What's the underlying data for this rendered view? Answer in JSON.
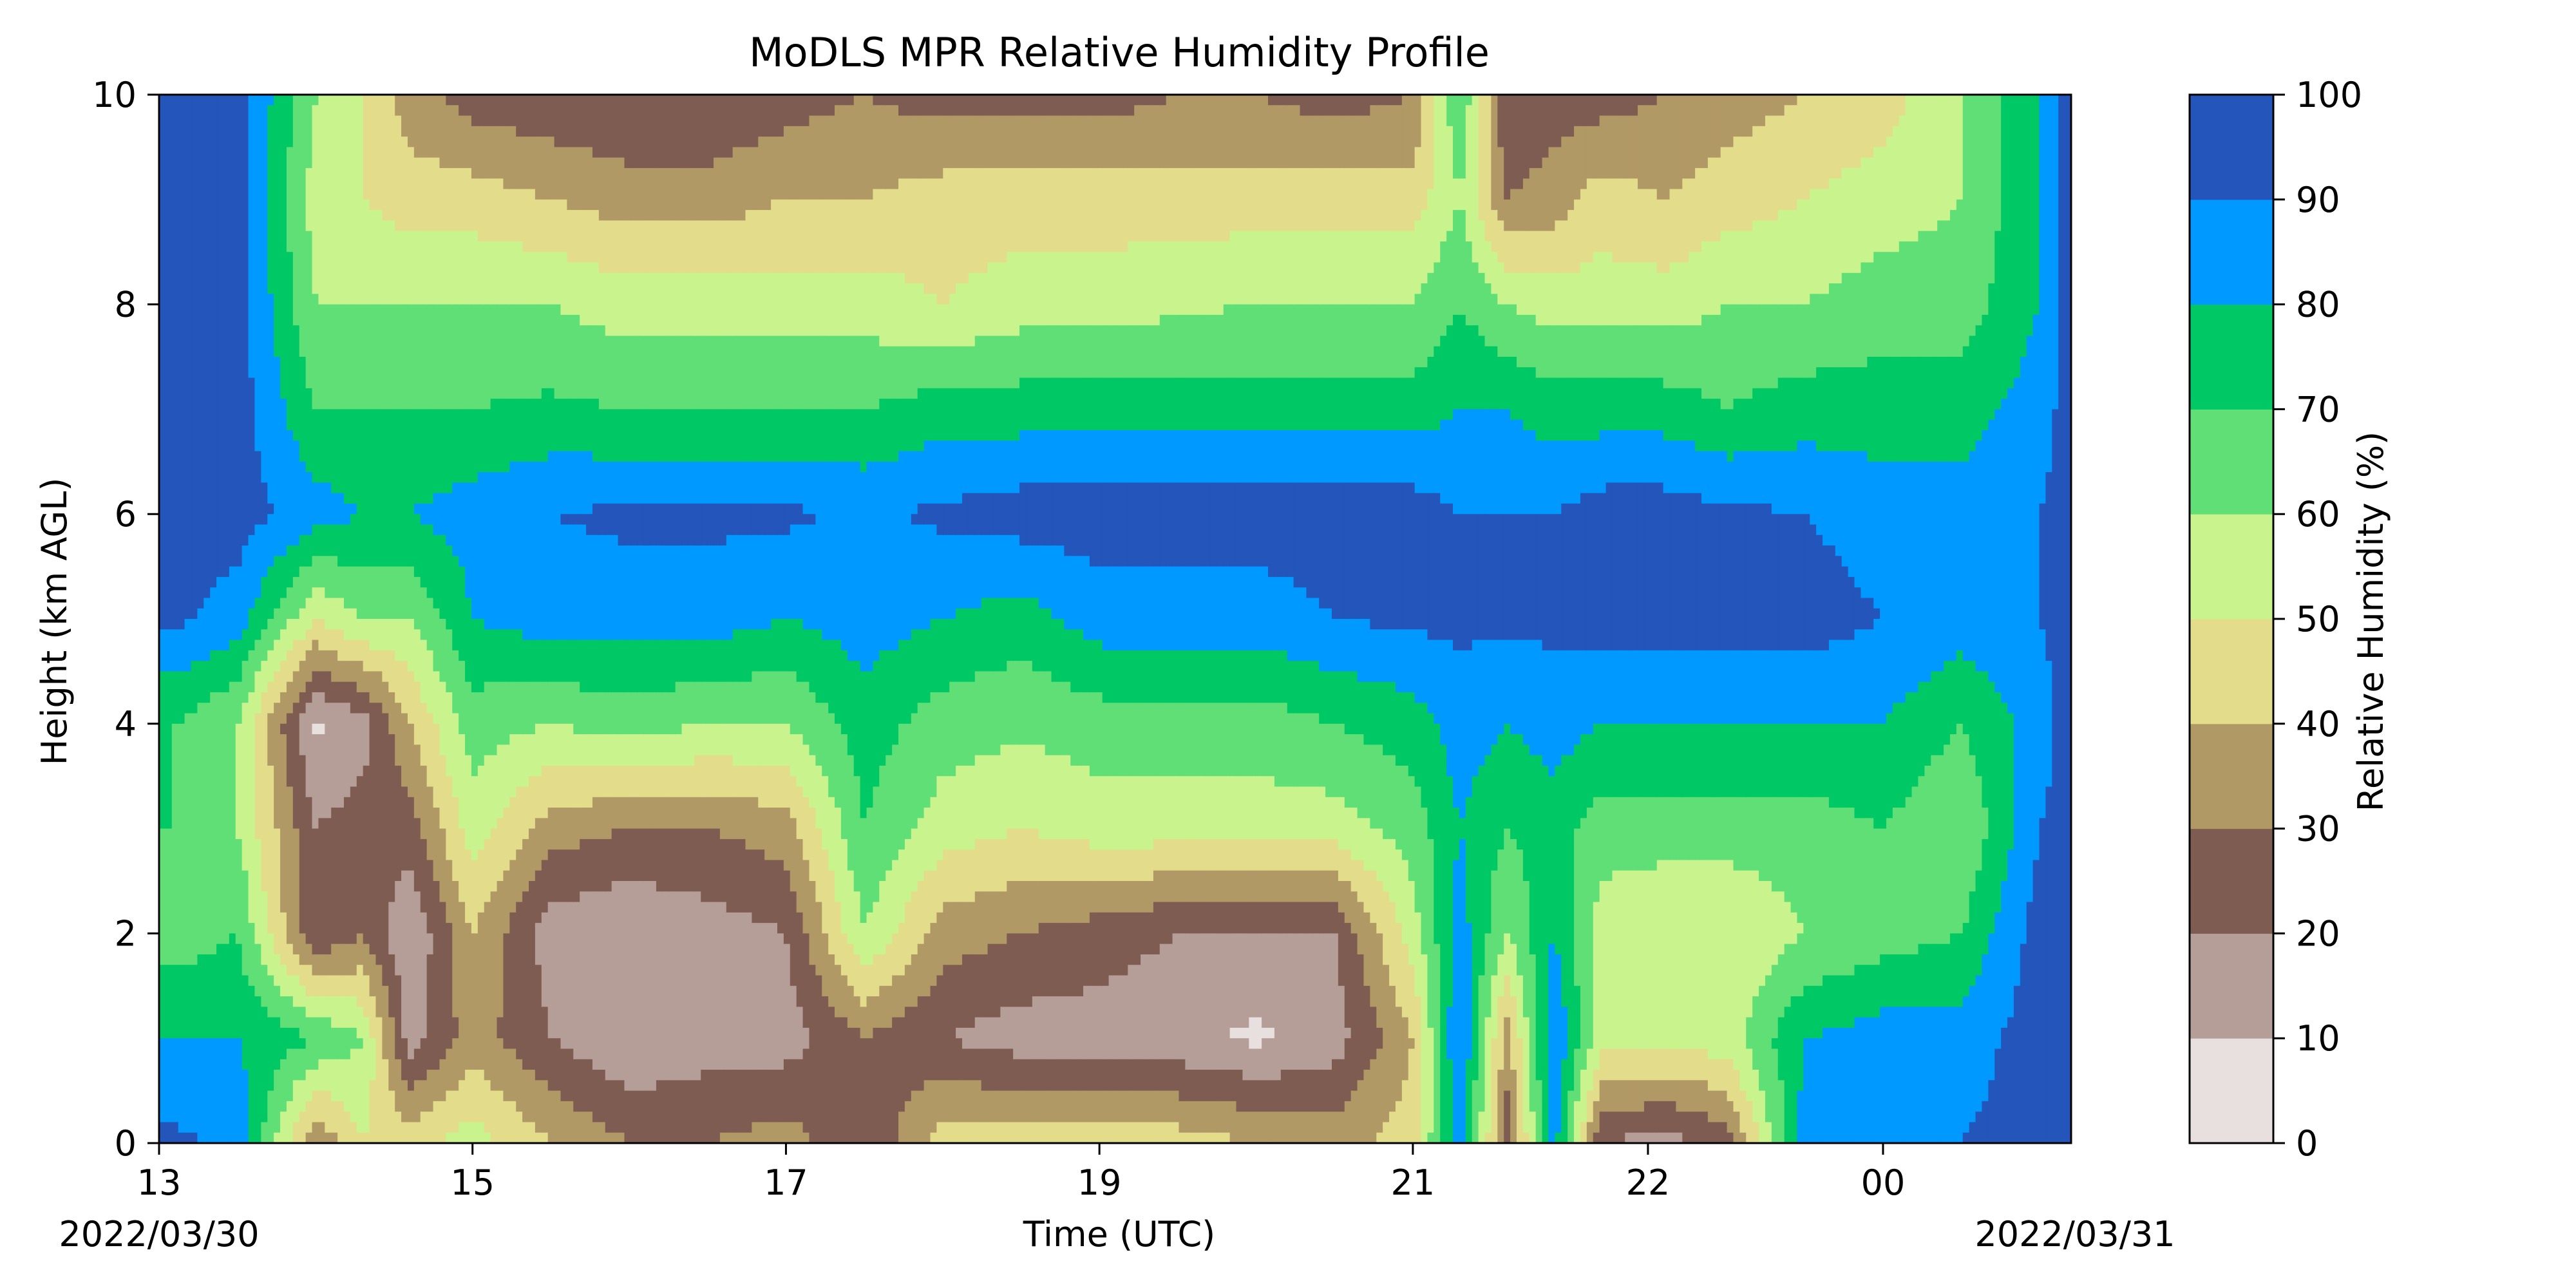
{
  "chart_data": {
    "type": "heatmap",
    "title": "MoDLS MPR Relative Humidity Profile",
    "xlabel": "Time (UTC)",
    "ylabel": "Height (km AGL)",
    "ylim": [
      0,
      10
    ],
    "y_ticks": [
      0,
      2,
      4,
      6,
      8,
      10
    ],
    "x_ticks": [
      "13",
      "15",
      "17",
      "19",
      "21",
      "22",
      "00"
    ],
    "x_tick_hours": [
      13,
      15,
      17,
      19,
      21,
      22.5,
      24
    ],
    "xlim_hours": [
      13,
      25.2
    ],
    "date_start_label": "2022/03/30",
    "date_end_label": "2022/03/31",
    "colorbar": {
      "label": "Relative Humidity (%)",
      "ticks": [
        0,
        10,
        20,
        30,
        40,
        50,
        60,
        70,
        80,
        90,
        100
      ],
      "levels": [
        0,
        10,
        20,
        30,
        40,
        50,
        60,
        70,
        80,
        90,
        100
      ],
      "colors": [
        "#e8e0de",
        "#b59e97",
        "#7f5c52",
        "#b19966",
        "#e3dd8b",
        "#c9f48d",
        "#5fdf76",
        "#00c864",
        "#0099ff",
        "#2455bb"
      ]
    },
    "grid": false,
    "profiles": [
      {
        "t": 13.1,
        "rh": [
          92,
          80,
          65,
          70,
          70,
          92,
          95,
          95,
          95,
          95,
          95
        ]
      },
      {
        "t": 13.5,
        "rh": [
          88,
          80,
          70,
          60,
          60,
          85,
          95,
          95,
          95,
          95,
          95
        ]
      },
      {
        "t": 14.0,
        "rh": [
          30,
          70,
          20,
          20,
          8,
          50,
          85,
          70,
          60,
          55,
          60
        ]
      },
      {
        "t": 14.3,
        "rh": [
          50,
          60,
          30,
          25,
          15,
          60,
          80,
          70,
          60,
          50,
          50
        ]
      },
      {
        "t": 14.6,
        "rh": [
          45,
          15,
          10,
          25,
          40,
          60,
          80,
          70,
          60,
          45,
          35
        ]
      },
      {
        "t": 15.0,
        "rh": [
          55,
          35,
          40,
          55,
          65,
          80,
          85,
          70,
          60,
          45,
          25
        ]
      },
      {
        "t": 15.5,
        "rh": [
          40,
          20,
          15,
          35,
          60,
          85,
          90,
          72,
          60,
          40,
          22
        ]
      },
      {
        "t": 16.0,
        "rh": [
          30,
          10,
          10,
          30,
          65,
          85,
          92,
          70,
          55,
          35,
          20
        ]
      },
      {
        "t": 16.5,
        "rh": [
          30,
          15,
          15,
          30,
          60,
          85,
          92,
          70,
          55,
          35,
          20
        ]
      },
      {
        "t": 17.0,
        "rh": [
          35,
          15,
          20,
          35,
          60,
          80,
          92,
          70,
          55,
          40,
          25
        ]
      },
      {
        "t": 17.5,
        "rh": [
          20,
          30,
          60,
          70,
          75,
          85,
          88,
          70,
          55,
          40,
          30
        ]
      },
      {
        "t": 18.0,
        "rh": [
          45,
          20,
          35,
          55,
          65,
          80,
          92,
          75,
          50,
          45,
          25
        ]
      },
      {
        "t": 18.5,
        "rh": [
          45,
          15,
          30,
          50,
          62,
          75,
          95,
          75,
          55,
          45,
          25
        ]
      },
      {
        "t": 19.0,
        "rh": [
          45,
          15,
          25,
          55,
          65,
          85,
          95,
          75,
          55,
          45,
          25
        ]
      },
      {
        "t": 19.5,
        "rh": [
          45,
          12,
          20,
          55,
          65,
          85,
          95,
          75,
          58,
          45,
          30
        ]
      },
      {
        "t": 20.0,
        "rh": [
          40,
          8,
          20,
          55,
          65,
          85,
          95,
          75,
          60,
          45,
          30
        ]
      },
      {
        "t": 20.5,
        "rh": [
          35,
          15,
          20,
          55,
          70,
          90,
          95,
          75,
          60,
          45,
          25
        ]
      },
      {
        "t": 21.0,
        "rh": [
          45,
          40,
          55,
          65,
          75,
          92,
          95,
          75,
          60,
          45,
          30
        ]
      },
      {
        "t": 21.3,
        "rh": [
          85,
          92,
          85,
          80,
          85,
          92,
          90,
          80,
          70,
          60,
          70
        ]
      },
      {
        "t": 21.6,
        "rh": [
          25,
          35,
          60,
          70,
          80,
          92,
          90,
          80,
          60,
          30,
          20
        ]
      },
      {
        "t": 21.9,
        "rh": [
          85,
          90,
          80,
          75,
          85,
          92,
          90,
          75,
          55,
          35,
          25
        ]
      },
      {
        "t": 22.2,
        "rh": [
          20,
          55,
          55,
          65,
          80,
          95,
          95,
          75,
          55,
          45,
          25
        ]
      },
      {
        "t": 22.6,
        "rh": [
          15,
          55,
          50,
          65,
          80,
          95,
          95,
          75,
          55,
          40,
          30
        ]
      },
      {
        "t": 23.0,
        "rh": [
          25,
          55,
          50,
          65,
          80,
          95,
          92,
          70,
          60,
          45,
          35
        ]
      },
      {
        "t": 23.5,
        "rh": [
          85,
          80,
          60,
          65,
          80,
          95,
          90,
          75,
          60,
          50,
          40
        ]
      },
      {
        "t": 24.0,
        "rh": [
          85,
          85,
          65,
          70,
          80,
          90,
          85,
          75,
          65,
          55,
          45
        ]
      },
      {
        "t": 24.5,
        "rh": [
          90,
          85,
          70,
          60,
          70,
          85,
          85,
          75,
          65,
          60,
          60
        ]
      },
      {
        "t": 25.0,
        "rh": [
          95,
          95,
          95,
          90,
          85,
          90,
          90,
          85,
          80,
          80,
          80
        ]
      },
      {
        "t": 25.2,
        "rh": [
          95,
          95,
          95,
          95,
          95,
          95,
          95,
          95,
          95,
          95,
          95
        ]
      }
    ]
  }
}
